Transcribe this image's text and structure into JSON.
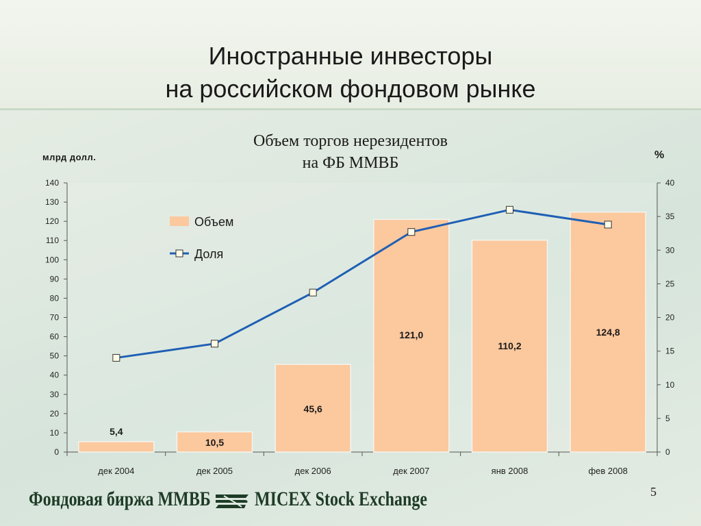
{
  "slide": {
    "title_line1": "Иностранные инвесторы",
    "title_line2": "на российском фондовом рынке",
    "page_number": "5",
    "footer_ru": "Фондовая биржа ММВБ",
    "footer_en": "MICEX Stock Exchange",
    "logo_icon": "micex-logo-icon"
  },
  "chart_data": {
    "type": "bar",
    "title_line1": "Объем торгов нерезидентов",
    "title_line2": "на ФБ ММВБ",
    "ylabel": "млрд долл.",
    "y2label": "%",
    "categories": [
      "дек 2004",
      "дек 2005",
      "дек 2006",
      "дек 2007",
      "янв 2008",
      "фев 2008"
    ],
    "ylim": [
      0,
      140
    ],
    "y_ticks": [
      0,
      10,
      20,
      30,
      40,
      50,
      60,
      70,
      80,
      90,
      100,
      110,
      120,
      130,
      140
    ],
    "y2lim": [
      0,
      40
    ],
    "y2_ticks": [
      0,
      5,
      10,
      15,
      20,
      25,
      30,
      35,
      40
    ],
    "series": [
      {
        "name": "Объем",
        "type": "bar",
        "axis": "left",
        "values": [
          5.4,
          10.5,
          45.6,
          121.0,
          110.2,
          124.8
        ],
        "labels": [
          "5,4",
          "10,5",
          "45,6",
          "121,0",
          "110,2",
          "124,8"
        ],
        "color": "#fcc89e"
      },
      {
        "name": "Доля",
        "type": "line",
        "axis": "right",
        "values": [
          14.0,
          16.1,
          23.7,
          32.7,
          36.0,
          33.8
        ],
        "color": "#1e5fb4"
      }
    ],
    "legend_position": "top-left",
    "grid": false
  }
}
